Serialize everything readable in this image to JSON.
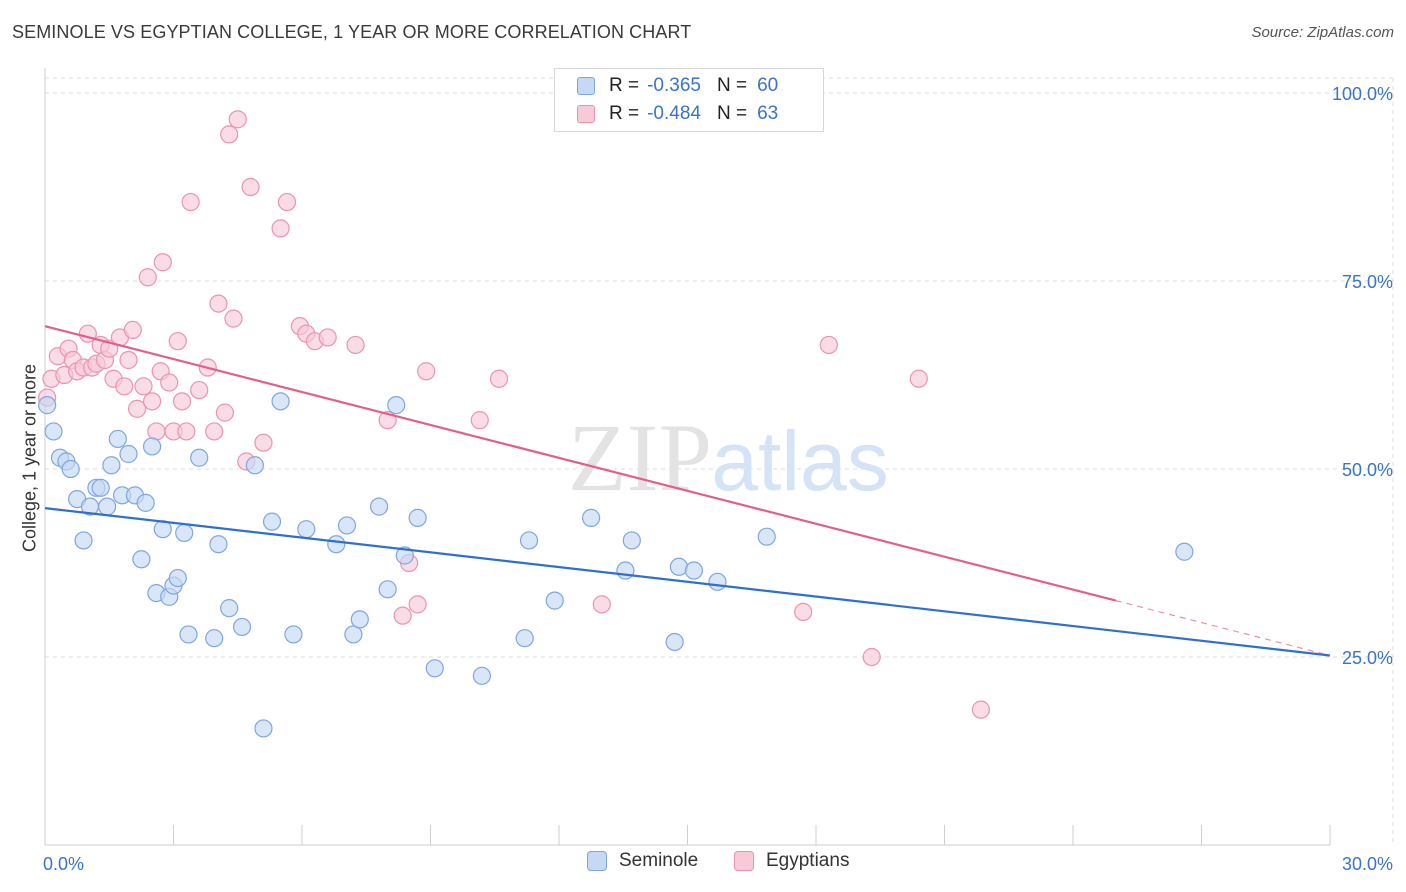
{
  "header": {
    "title": "SEMINOLE VS EGYPTIAN COLLEGE, 1 YEAR OR MORE CORRELATION CHART",
    "source": "Source: ZipAtlas.com"
  },
  "legend": {
    "rows": [
      {
        "r_label": "R =",
        "r_value": "-0.365",
        "n_label": "N =",
        "n_value": "60"
      },
      {
        "r_label": "R =",
        "r_value": "-0.484",
        "n_label": "N =",
        "n_value": "63"
      }
    ]
  },
  "watermark": {
    "zip": "ZIP",
    "atlas": "atlas"
  },
  "colors": {
    "seminole_fill": "#c5d8f4",
    "seminole_stroke": "#7fa6e0",
    "seminole_line": "#2f6fd0",
    "egyptian_fill": "#f8cad8",
    "egyptian_stroke": "#eb93b0",
    "egyptian_line": "#e0608a",
    "axis_label": "#3a73c9",
    "grid": "#dcdcdc"
  },
  "chart_data": {
    "type": "scatter",
    "title": "SEMINOLE VS EGYPTIAN COLLEGE, 1 YEAR OR MORE CORRELATION CHART",
    "xlabel": "",
    "ylabel": "College, 1 year or more",
    "xlim": [
      0,
      30
    ],
    "ylim": [
      0,
      102
    ],
    "x_tick_labels": [
      "0.0%",
      "30.0%"
    ],
    "y_ticks": [
      25,
      50,
      75,
      100
    ],
    "y_tick_labels": [
      "25.0%",
      "50.0%",
      "75.0%",
      "100.0%"
    ],
    "grid": true,
    "legend_position": "bottom",
    "series": [
      {
        "name": "Seminole",
        "r": -0.365,
        "n": 60,
        "trend": {
          "x0": 0,
          "y0": 44.8,
          "x1": 30,
          "y1": 25.2
        },
        "points": [
          [
            0.05,
            58.5
          ],
          [
            0.2,
            55.0
          ],
          [
            0.35,
            51.5
          ],
          [
            0.5,
            51.0
          ],
          [
            0.6,
            50.0
          ],
          [
            0.75,
            46.0
          ],
          [
            0.9,
            40.5
          ],
          [
            1.05,
            45.0
          ],
          [
            1.2,
            47.5
          ],
          [
            1.3,
            47.5
          ],
          [
            1.45,
            45.0
          ],
          [
            1.55,
            50.5
          ],
          [
            1.7,
            54.0
          ],
          [
            1.8,
            46.5
          ],
          [
            1.95,
            52.0
          ],
          [
            2.1,
            46.5
          ],
          [
            2.25,
            38.0
          ],
          [
            2.35,
            45.5
          ],
          [
            2.5,
            53.0
          ],
          [
            2.6,
            33.5
          ],
          [
            2.75,
            42.0
          ],
          [
            2.9,
            33.0
          ],
          [
            3.0,
            34.5
          ],
          [
            3.1,
            35.5
          ],
          [
            3.25,
            41.5
          ],
          [
            3.35,
            28.0
          ],
          [
            3.6,
            51.5
          ],
          [
            3.95,
            27.5
          ],
          [
            4.05,
            40.0
          ],
          [
            4.3,
            31.5
          ],
          [
            4.6,
            29.0
          ],
          [
            4.9,
            50.5
          ],
          [
            5.1,
            15.5
          ],
          [
            5.3,
            43.0
          ],
          [
            5.5,
            59.0
          ],
          [
            5.8,
            28.0
          ],
          [
            6.1,
            42.0
          ],
          [
            6.8,
            40.0
          ],
          [
            7.05,
            42.5
          ],
          [
            7.2,
            28.0
          ],
          [
            7.35,
            30.0
          ],
          [
            7.8,
            45.0
          ],
          [
            8.0,
            34.0
          ],
          [
            8.2,
            58.5
          ],
          [
            8.4,
            38.5
          ],
          [
            8.7,
            43.5
          ],
          [
            9.1,
            23.5
          ],
          [
            10.2,
            22.5
          ],
          [
            11.2,
            27.5
          ],
          [
            11.3,
            40.5
          ],
          [
            11.9,
            32.5
          ],
          [
            12.75,
            43.5
          ],
          [
            13.55,
            36.5
          ],
          [
            13.7,
            40.5
          ],
          [
            14.7,
            27.0
          ],
          [
            14.8,
            37.0
          ],
          [
            15.15,
            36.5
          ],
          [
            15.7,
            35.0
          ],
          [
            16.85,
            41.0
          ],
          [
            26.6,
            39.0
          ]
        ]
      },
      {
        "name": "Egyptians",
        "r": -0.484,
        "n": 63,
        "trend": {
          "x0": 0,
          "y0": 69.0,
          "x1": 25,
          "y1": 32.5
        },
        "trend_dashed": {
          "x0": 25,
          "y0": 32.5,
          "x1": 30,
          "y1": 25.2
        },
        "points": [
          [
            0.05,
            59.5
          ],
          [
            0.15,
            62.0
          ],
          [
            0.3,
            65.0
          ],
          [
            0.45,
            62.5
          ],
          [
            0.55,
            66.0
          ],
          [
            0.65,
            64.5
          ],
          [
            0.75,
            63.0
          ],
          [
            0.9,
            63.5
          ],
          [
            1.0,
            68.0
          ],
          [
            1.1,
            63.5
          ],
          [
            1.2,
            64.0
          ],
          [
            1.3,
            66.5
          ],
          [
            1.4,
            64.5
          ],
          [
            1.5,
            66.0
          ],
          [
            1.6,
            62.0
          ],
          [
            1.75,
            67.5
          ],
          [
            1.85,
            61.0
          ],
          [
            1.95,
            64.5
          ],
          [
            2.05,
            68.5
          ],
          [
            2.15,
            58.0
          ],
          [
            2.3,
            61.0
          ],
          [
            2.4,
            75.5
          ],
          [
            2.5,
            59.0
          ],
          [
            2.6,
            55.0
          ],
          [
            2.7,
            63.0
          ],
          [
            2.75,
            77.5
          ],
          [
            2.9,
            61.5
          ],
          [
            3.0,
            55.0
          ],
          [
            3.1,
            67.0
          ],
          [
            3.2,
            59.0
          ],
          [
            3.3,
            55.0
          ],
          [
            3.4,
            85.5
          ],
          [
            3.6,
            60.5
          ],
          [
            3.8,
            63.5
          ],
          [
            3.95,
            55.0
          ],
          [
            4.05,
            72.0
          ],
          [
            4.2,
            57.5
          ],
          [
            4.3,
            94.5
          ],
          [
            4.4,
            70.0
          ],
          [
            4.5,
            96.5
          ],
          [
            4.7,
            51.0
          ],
          [
            4.8,
            87.5
          ],
          [
            5.1,
            53.5
          ],
          [
            5.5,
            82.0
          ],
          [
            5.65,
            85.5
          ],
          [
            5.95,
            69.0
          ],
          [
            6.1,
            68.0
          ],
          [
            6.3,
            67.0
          ],
          [
            6.6,
            67.5
          ],
          [
            7.25,
            66.5
          ],
          [
            8.0,
            56.5
          ],
          [
            8.35,
            30.5
          ],
          [
            8.5,
            37.5
          ],
          [
            8.7,
            32.0
          ],
          [
            8.9,
            63.0
          ],
          [
            10.15,
            56.5
          ],
          [
            10.6,
            62.0
          ],
          [
            13.0,
            32.0
          ],
          [
            17.7,
            31.0
          ],
          [
            18.3,
            66.5
          ],
          [
            19.3,
            25.0
          ],
          [
            20.4,
            62.0
          ],
          [
            21.85,
            18.0
          ]
        ]
      }
    ]
  },
  "bottom_legend": {
    "items": [
      "Seminole",
      "Egyptians"
    ]
  }
}
